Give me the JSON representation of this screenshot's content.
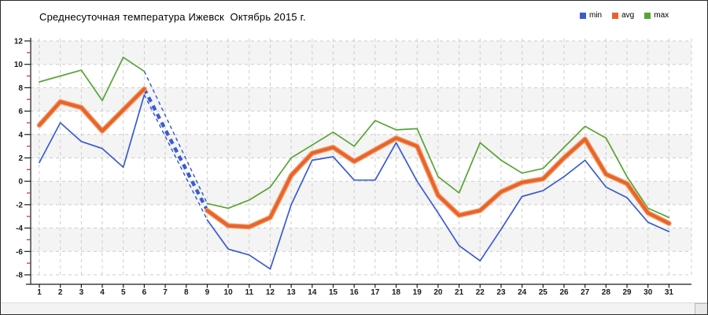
{
  "header": {
    "title": "Среднесуточная температура Ижевск  Октябрь 2015 г."
  },
  "legend": {
    "position": "top-right",
    "items": [
      {
        "label": "min",
        "color": "#3a5bd0"
      },
      {
        "label": "avg",
        "color": "#e8632c"
      },
      {
        "label": "max",
        "color": "#58a433"
      }
    ]
  },
  "chart_data": {
    "type": "line",
    "title": "Среднесуточная температура Ижевск  Октябрь 2015 г.",
    "xlabel": "",
    "ylabel": "",
    "x": [
      1,
      2,
      3,
      4,
      5,
      6,
      7,
      8,
      9,
      10,
      11,
      12,
      13,
      14,
      15,
      16,
      17,
      18,
      19,
      20,
      21,
      22,
      23,
      24,
      25,
      26,
      27,
      28,
      29,
      30,
      31
    ],
    "x_tick_labels": [
      "1",
      "2",
      "3",
      "4",
      "5",
      "6",
      "7",
      "8",
      "9",
      "10",
      "11",
      "12",
      "13",
      "14",
      "15",
      "16",
      "17",
      "18",
      "19",
      "20",
      "21",
      "22",
      "23",
      "24",
      "25",
      "26",
      "27",
      "28",
      "29",
      "30",
      "31"
    ],
    "ylim": [
      -8,
      12
    ],
    "y_ticks": [
      12,
      10,
      8,
      6,
      4,
      2,
      0,
      -2,
      -4,
      -6,
      -8
    ],
    "y_minor_ticks": [
      11,
      9,
      7,
      5,
      3,
      1,
      -1,
      -3,
      -5,
      -7
    ],
    "grid": true,
    "legend_position": "top-right",
    "missing_days": [
      7,
      8
    ],
    "series": [
      {
        "name": "min",
        "color": "#3a5bd0",
        "width": "thin",
        "values": [
          1.6,
          5.0,
          3.4,
          2.8,
          1.2,
          7.4,
          null,
          null,
          -3.3,
          -5.8,
          -6.3,
          -7.5,
          -2.0,
          1.8,
          2.1,
          0.1,
          0.1,
          3.3,
          0.0,
          -2.7,
          -5.5,
          -6.8,
          -4.1,
          -1.3,
          -0.8,
          0.4,
          1.8,
          -0.5,
          -1.4,
          -3.5,
          -4.3
        ]
      },
      {
        "name": "avg",
        "color": "#e8632c",
        "width": "thick",
        "values": [
          4.8,
          6.8,
          6.3,
          4.3,
          6.1,
          7.9,
          null,
          null,
          -2.5,
          -3.8,
          -3.9,
          -3.1,
          0.5,
          2.4,
          2.9,
          1.7,
          2.7,
          3.7,
          3.0,
          -1.2,
          -2.9,
          -2.5,
          -0.9,
          -0.1,
          0.2,
          2.0,
          3.6,
          0.6,
          -0.2,
          -2.7,
          -3.6
        ]
      },
      {
        "name": "max",
        "color": "#58a433",
        "width": "thin",
        "values": [
          8.5,
          9.0,
          9.5,
          6.9,
          10.6,
          9.4,
          null,
          null,
          -1.9,
          -2.3,
          -1.6,
          -0.5,
          2.0,
          3.1,
          4.2,
          3.0,
          5.2,
          4.4,
          4.5,
          0.4,
          -1.0,
          3.3,
          1.8,
          0.7,
          1.1,
          2.9,
          4.7,
          3.7,
          0.4,
          -2.3,
          -3.1
        ]
      }
    ],
    "missing_segment": {
      "from_day": 6,
      "to_day": 9,
      "color": "#3a5bd0",
      "style": "dashed",
      "lines": [
        {
          "kind": "max",
          "from_value": 9.4,
          "to_value": -1.9,
          "thickness": "thin"
        },
        {
          "kind": "avg",
          "from_value": 7.9,
          "to_value": -2.5,
          "thickness": "thick"
        },
        {
          "kind": "min",
          "from_value": 7.4,
          "to_value": -3.3,
          "thickness": "thin"
        }
      ]
    }
  },
  "style_colors": {
    "gridline": "#cccccc",
    "band": "#f4f4f4",
    "axis": "#1a1a1a",
    "minor_tick": "#c23232",
    "tick_label": "#1a1a1a",
    "avg_halo": "#f2a06a"
  }
}
